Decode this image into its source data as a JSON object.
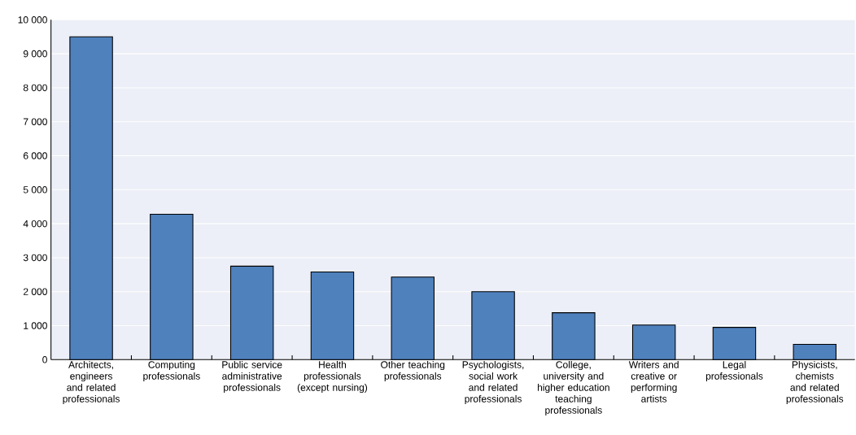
{
  "chart_data": {
    "type": "bar",
    "categories": [
      "Architects, engineers and related professionals",
      "Computing professionals",
      "Public service administrative professionals",
      "Health professionals (except nursing)",
      "Other teaching professionals",
      "Psychologists, social work and related professionals",
      "College, university and higher education teaching professionals",
      "Writers and creative or performing artists",
      "Legal professionals",
      "Physicists, chemists and related professionals"
    ],
    "values": [
      9500,
      4280,
      2750,
      2580,
      2430,
      2000,
      1380,
      1020,
      950,
      450
    ],
    "color": "#4f81bd",
    "ylim": [
      0,
      10000
    ],
    "yticks": [
      0,
      {
        "value": 1000,
        "label": "1 000"
      },
      {
        "value": 2000,
        "label": "2 000"
      },
      {
        "value": 3000,
        "label": "3 000"
      },
      {
        "value": 4000,
        "label": "4 000"
      },
      {
        "value": 5000,
        "label": "5 000"
      },
      {
        "value": 6000,
        "label": "6 000"
      },
      {
        "value": 7000,
        "label": "7 000"
      },
      {
        "value": 8000,
        "label": "8 000"
      },
      {
        "value": 9000,
        "label": "9 000"
      },
      {
        "value": 10000,
        "label": "10 000"
      }
    ],
    "grid": "y"
  }
}
